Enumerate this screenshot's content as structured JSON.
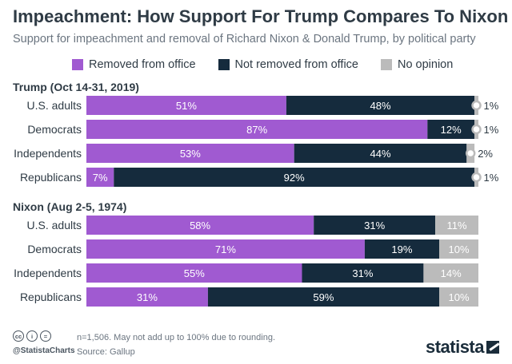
{
  "header": {
    "title": "Impeachment: How Support For Trump Compares To Nixon",
    "subtitle": "Support for impeachment and removal of Richard Nixon & Donald Trump, by political party"
  },
  "colors": {
    "removed": "#a05ad1",
    "not_removed": "#152b3d",
    "no_opinion": "#bbbbbb",
    "text": "#2f3b45"
  },
  "chart_data": {
    "type": "bar",
    "orientation": "horizontal",
    "stacked": true,
    "unit": "%",
    "xlim": [
      0,
      100
    ],
    "series": [
      {
        "name": "Removed from office",
        "key": "removed"
      },
      {
        "name": "Not removed from office",
        "key": "not_removed"
      },
      {
        "name": "No opinion",
        "key": "no_opinion"
      }
    ],
    "groups": [
      {
        "title": "Trump (Oct 14-31, 2019)",
        "rows": [
          {
            "label": "U.S. adults",
            "values": [
              51,
              48,
              1
            ]
          },
          {
            "label": "Democrats",
            "values": [
              87,
              12,
              1
            ]
          },
          {
            "label": "Independents",
            "values": [
              53,
              44,
              2
            ]
          },
          {
            "label": "Republicans",
            "values": [
              7,
              92,
              1
            ]
          }
        ]
      },
      {
        "title": "Nixon (Aug 2-5, 1974)",
        "rows": [
          {
            "label": "U.S. adults",
            "values": [
              58,
              31,
              11
            ]
          },
          {
            "label": "Democrats",
            "values": [
              71,
              19,
              10
            ]
          },
          {
            "label": "Independents",
            "values": [
              55,
              31,
              14
            ]
          },
          {
            "label": "Republicans",
            "values": [
              31,
              59,
              10
            ]
          }
        ]
      }
    ]
  },
  "footer": {
    "cc_icons": [
      "cc",
      "i",
      "="
    ],
    "handle": "@StatistaCharts",
    "note": "n=1,506. May not add up to 100% due to rounding.",
    "source": "Source: Gallup",
    "brand": "statista"
  }
}
